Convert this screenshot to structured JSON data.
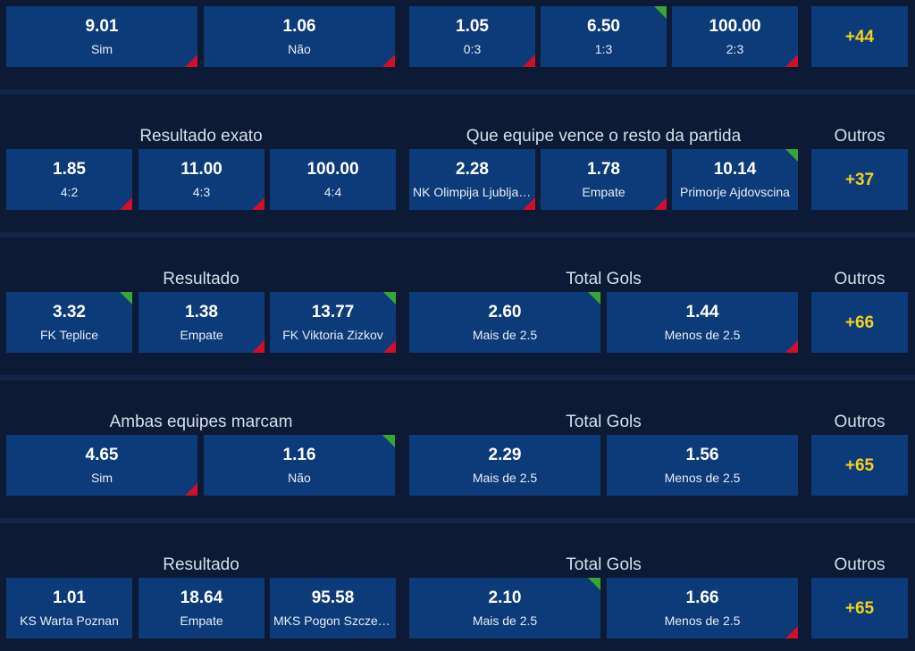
{
  "rows": [
    {
      "left_title": "",
      "right_title": "",
      "outros_label": "",
      "cells": [
        {
          "odd": "9.01",
          "label": "Sim",
          "trend": "down"
        },
        {
          "odd": "1.06",
          "label": "Não",
          "trend": "down"
        },
        {
          "odd": "1.05",
          "label": "0:3",
          "trend": "down"
        },
        {
          "odd": "6.50",
          "label": "1:3",
          "trend": "up"
        },
        {
          "odd": "100.00",
          "label": "2:3",
          "trend": "down"
        }
      ],
      "more": "+44"
    },
    {
      "left_title": "Resultado exato",
      "right_title": "Que equipe vence o resto da partida",
      "outros_label": "Outros",
      "cells": [
        {
          "odd": "1.85",
          "label": "4:2",
          "trend": "down"
        },
        {
          "odd": "11.00",
          "label": "4:3",
          "trend": "down"
        },
        {
          "odd": "100.00",
          "label": "4:4",
          "trend": "none"
        },
        {
          "odd": "2.28",
          "label": "NK Olimpija Ljubljana",
          "trend": "down"
        },
        {
          "odd": "1.78",
          "label": "Empate",
          "trend": "down"
        },
        {
          "odd": "10.14",
          "label": "Primorje Ajdovscina",
          "trend": "up"
        }
      ],
      "more": "+37"
    },
    {
      "left_title": "Resultado",
      "right_title": "Total Gols",
      "outros_label": "Outros",
      "cells": [
        {
          "odd": "3.32",
          "label": "FK Teplice",
          "trend": "up"
        },
        {
          "odd": "1.38",
          "label": "Empate",
          "trend": "down"
        },
        {
          "odd": "13.77",
          "label": "FK Viktoria Zizkov",
          "trend": "up_down"
        },
        {
          "odd": "2.60",
          "label": "Mais de 2.5",
          "trend": "up"
        },
        {
          "odd": "1.44",
          "label": "Menos de 2.5",
          "trend": "down"
        }
      ],
      "more": "+66"
    },
    {
      "left_title": "Ambas equipes marcam",
      "right_title": "Total Gols",
      "outros_label": "Outros",
      "cells": [
        {
          "odd": "4.65",
          "label": "Sim",
          "trend": "down"
        },
        {
          "odd": "1.16",
          "label": "Não",
          "trend": "up"
        },
        {
          "odd": "2.29",
          "label": "Mais de 2.5",
          "trend": "none"
        },
        {
          "odd": "1.56",
          "label": "Menos de 2.5",
          "trend": "none"
        }
      ],
      "more": "+65"
    },
    {
      "left_title": "Resultado",
      "right_title": "Total Gols",
      "outros_label": "Outros",
      "cells": [
        {
          "odd": "1.01",
          "label": "KS Warta Poznan",
          "trend": "none"
        },
        {
          "odd": "18.64",
          "label": "Empate",
          "trend": "none"
        },
        {
          "odd": "95.58",
          "label": "MKS Pogon Szczecin",
          "trend": "none"
        },
        {
          "odd": "2.10",
          "label": "Mais de 2.5",
          "trend": "up"
        },
        {
          "odd": "1.66",
          "label": "Menos de 2.5",
          "trend": "down"
        }
      ],
      "more": "+65"
    }
  ]
}
